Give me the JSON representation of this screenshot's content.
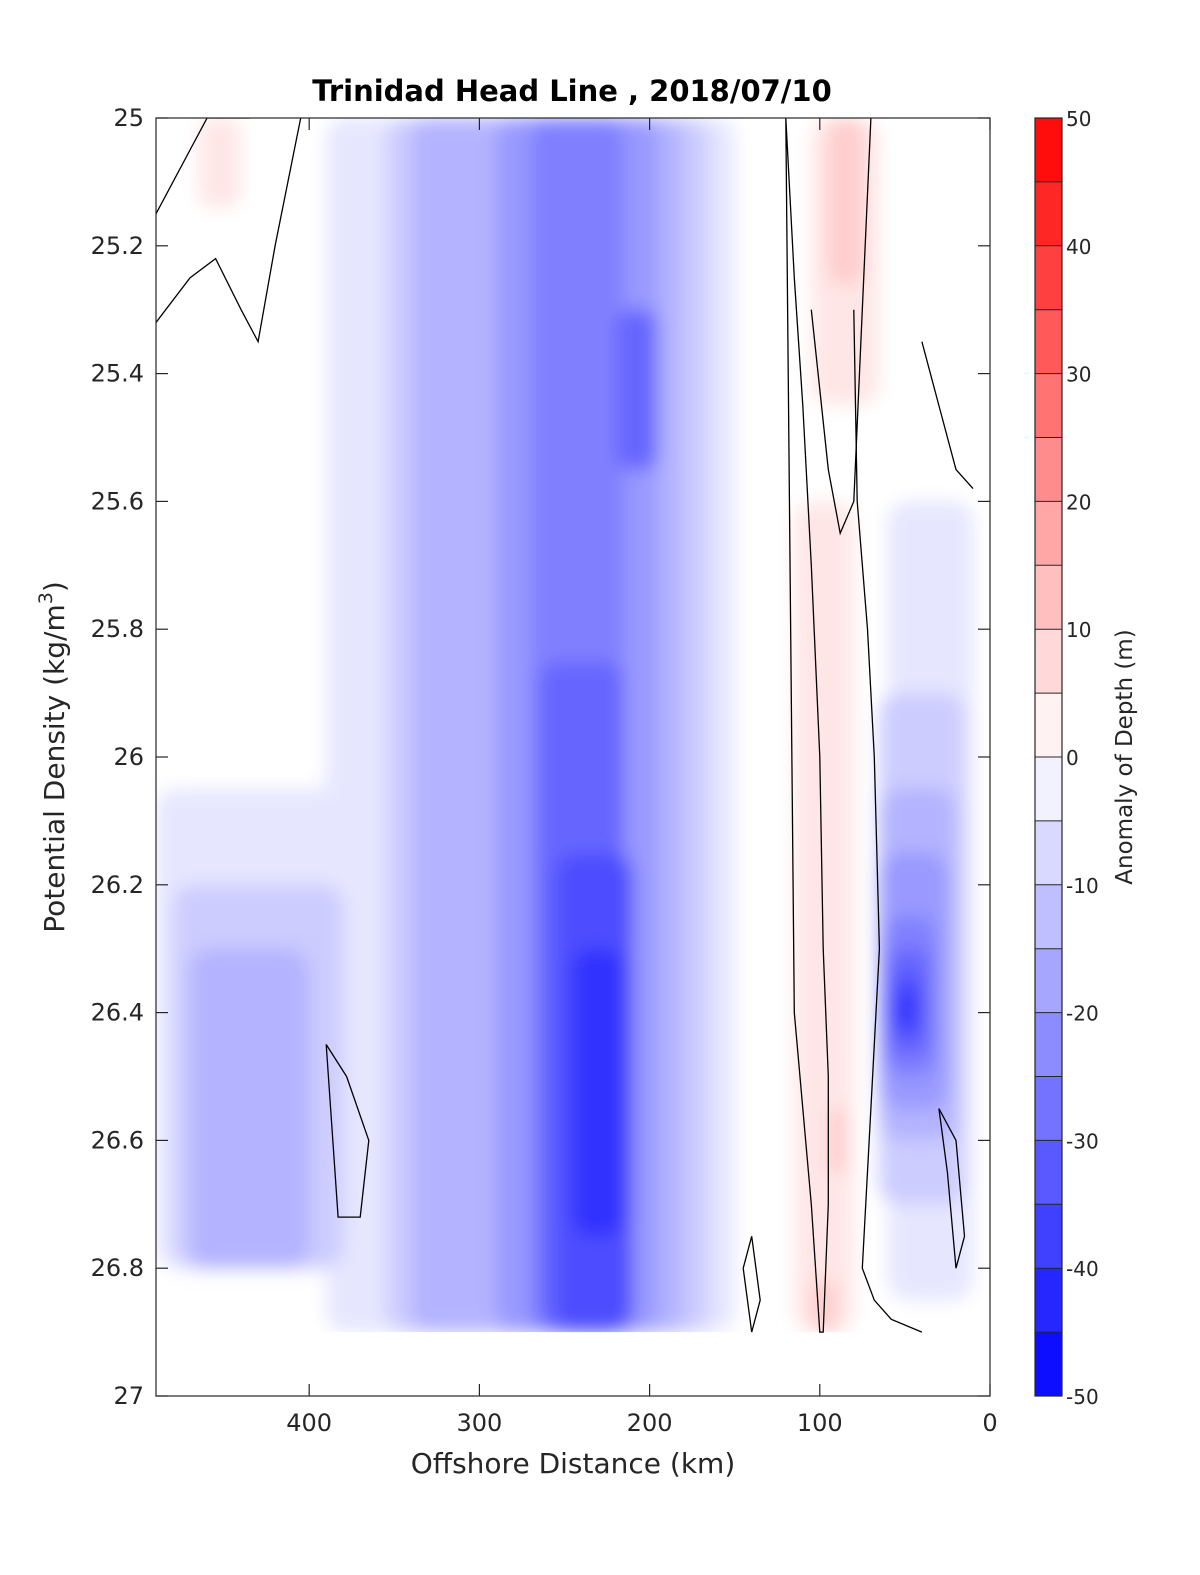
{
  "chart_data": {
    "type": "heatmap",
    "subtype": "filled-contour",
    "title": "Trinidad Head Line , 2018/07/10",
    "xlabel": "Offshore Distance (km)",
    "ylabel": "Potential Density (kg/m",
    "ylabel_sup": "3",
    "ylabel_end": ")",
    "xlim": [
      490,
      0
    ],
    "x_reversed": true,
    "ylim": [
      27,
      25
    ],
    "y_reversed": true,
    "xticks": [
      400,
      300,
      200,
      100,
      0
    ],
    "xtick_labels": [
      "400",
      "300",
      "200",
      "100",
      "0"
    ],
    "yticks": [
      25,
      25.2,
      25.4,
      25.6,
      25.8,
      26,
      26.2,
      26.4,
      26.6,
      26.8,
      27
    ],
    "ytick_labels": [
      "25",
      "25.2",
      "25.4",
      "25.6",
      "25.8",
      "26",
      "26.2",
      "26.4",
      "26.6",
      "26.8",
      "27"
    ],
    "colorbar": {
      "label": "Anomaly of Depth (m)",
      "limits": [
        -50,
        50
      ],
      "step": 5,
      "ticks": [
        50,
        40,
        30,
        20,
        10,
        0,
        -10,
        -20,
        -30,
        -40,
        -50
      ],
      "tick_labels": [
        "50",
        "40",
        "30",
        "20",
        "10",
        "0",
        "-10",
        "-20",
        "-30",
        "-40",
        "-50"
      ],
      "colormap": "blue-white-red"
    },
    "data_extent": {
      "x": [
        490,
        10
      ],
      "y": [
        25,
        26.9
      ]
    },
    "regions": [
      {
        "level": 5,
        "y": [
          25,
          25.14
        ],
        "x": [
          465,
          440
        ]
      },
      {
        "level": 5,
        "y": [
          25,
          25.45
        ],
        "x": [
          105,
          65
        ]
      },
      {
        "level": 10,
        "y": [
          25,
          25.26
        ],
        "x": [
          95,
          75
        ]
      },
      {
        "level": 5,
        "y": [
          25.6,
          26.9
        ],
        "x": [
          115,
          80
        ]
      },
      {
        "level": 10,
        "y": [
          26.55,
          26.65
        ],
        "x": [
          95,
          85
        ]
      },
      {
        "level": 10,
        "y": [
          26.82,
          26.9
        ],
        "x": [
          105,
          90
        ]
      },
      {
        "level": 5,
        "y": [
          26.58,
          26.75
        ],
        "x": [
          35,
          20
        ]
      },
      {
        "level": -5,
        "y": [
          25,
          26.9
        ],
        "x": [
          390,
          150
        ]
      },
      {
        "level": -5,
        "y": [
          26.05,
          26.8
        ],
        "x": [
          490,
          300
        ]
      },
      {
        "level": -10,
        "y": [
          25,
          26.9
        ],
        "x": [
          355,
          165
        ]
      },
      {
        "level": -10,
        "y": [
          26.2,
          26.8
        ],
        "x": [
          480,
          380
        ]
      },
      {
        "level": -15,
        "y": [
          25,
          26.9
        ],
        "x": [
          340,
          180
        ]
      },
      {
        "level": -15,
        "y": [
          26.3,
          26.8
        ],
        "x": [
          470,
          400
        ]
      },
      {
        "level": -20,
        "y": [
          25,
          26.9
        ],
        "x": [
          290,
          195
        ]
      },
      {
        "level": -25,
        "y": [
          25,
          26.9
        ],
        "x": [
          270,
          215
        ]
      },
      {
        "level": -30,
        "y": [
          25.3,
          25.55
        ],
        "x": [
          220,
          195
        ]
      },
      {
        "level": -30,
        "y": [
          25.85,
          26.9
        ],
        "x": [
          265,
          215
        ]
      },
      {
        "level": -35,
        "y": [
          26.15,
          26.9
        ],
        "x": [
          255,
          210
        ]
      },
      {
        "level": -40,
        "y": [
          26.3,
          26.75
        ],
        "x": [
          245,
          215
        ]
      },
      {
        "level": -5,
        "y": [
          25.6,
          26.85
        ],
        "x": [
          60,
          10
        ]
      },
      {
        "level": -10,
        "y": [
          25.9,
          26.7
        ],
        "x": [
          65,
          15
        ]
      },
      {
        "level": -15,
        "y": [
          26.05,
          26.6
        ],
        "x": [
          65,
          20
        ]
      },
      {
        "level": -20,
        "y": [
          26.15,
          26.55
        ],
        "x": [
          65,
          25
        ]
      },
      {
        "level": -25,
        "y": [
          26.25,
          26.5
        ],
        "x": [
          62,
          32
        ]
      },
      {
        "level": -30,
        "y": [
          26.3,
          26.47
        ],
        "x": [
          60,
          35
        ]
      },
      {
        "level": -35,
        "y": [
          26.34,
          26.44
        ],
        "x": [
          58,
          40
        ]
      },
      {
        "level": -40,
        "y": [
          26.37,
          26.42
        ],
        "x": [
          56,
          44
        ]
      }
    ],
    "zero_contours": [
      {
        "x": [
          490,
          470,
          460,
          435
        ],
        "y": [
          25.15,
          25.05,
          25,
          25
        ]
      },
      {
        "x": [
          490,
          470,
          455,
          440,
          430,
          420,
          405
        ],
        "y": [
          25.32,
          25.25,
          25.22,
          25.3,
          25.35,
          25.2,
          25
        ]
      },
      {
        "x": [
          378,
          390,
          383,
          370,
          365,
          378
        ],
        "y": [
          26.5,
          26.45,
          26.72,
          26.72,
          26.6,
          26.5
        ]
      },
      {
        "x": [
          120,
          115,
          110,
          105,
          100,
          98,
          95,
          95,
          98,
          100,
          105,
          115,
          120
        ],
        "y": [
          25.0,
          25.25,
          25.45,
          25.7,
          26.0,
          26.3,
          26.5,
          26.7,
          26.9,
          26.9,
          26.7,
          26.4,
          25.0
        ]
      },
      {
        "x": [
          80,
          78,
          72,
          68,
          65,
          70,
          75,
          68,
          58,
          40
        ],
        "y": [
          25.3,
          25.6,
          25.8,
          26.0,
          26.3,
          26.55,
          26.8,
          26.85,
          26.88,
          26.9
        ]
      },
      {
        "x": [
          105,
          95,
          88,
          80,
          75,
          70
        ],
        "y": [
          25.3,
          25.55,
          25.65,
          25.6,
          25.3,
          25.0
        ]
      },
      {
        "x": [
          40,
          30,
          20,
          10
        ],
        "y": [
          25.35,
          25.45,
          25.55,
          25.58
        ]
      },
      {
        "x": [
          145,
          140,
          135,
          140,
          145
        ],
        "y": [
          26.8,
          26.75,
          26.85,
          26.9,
          26.8
        ]
      },
      {
        "x": [
          30,
          20,
          15,
          20,
          25,
          30
        ],
        "y": [
          26.55,
          26.6,
          26.75,
          26.8,
          26.65,
          26.55
        ]
      }
    ]
  }
}
